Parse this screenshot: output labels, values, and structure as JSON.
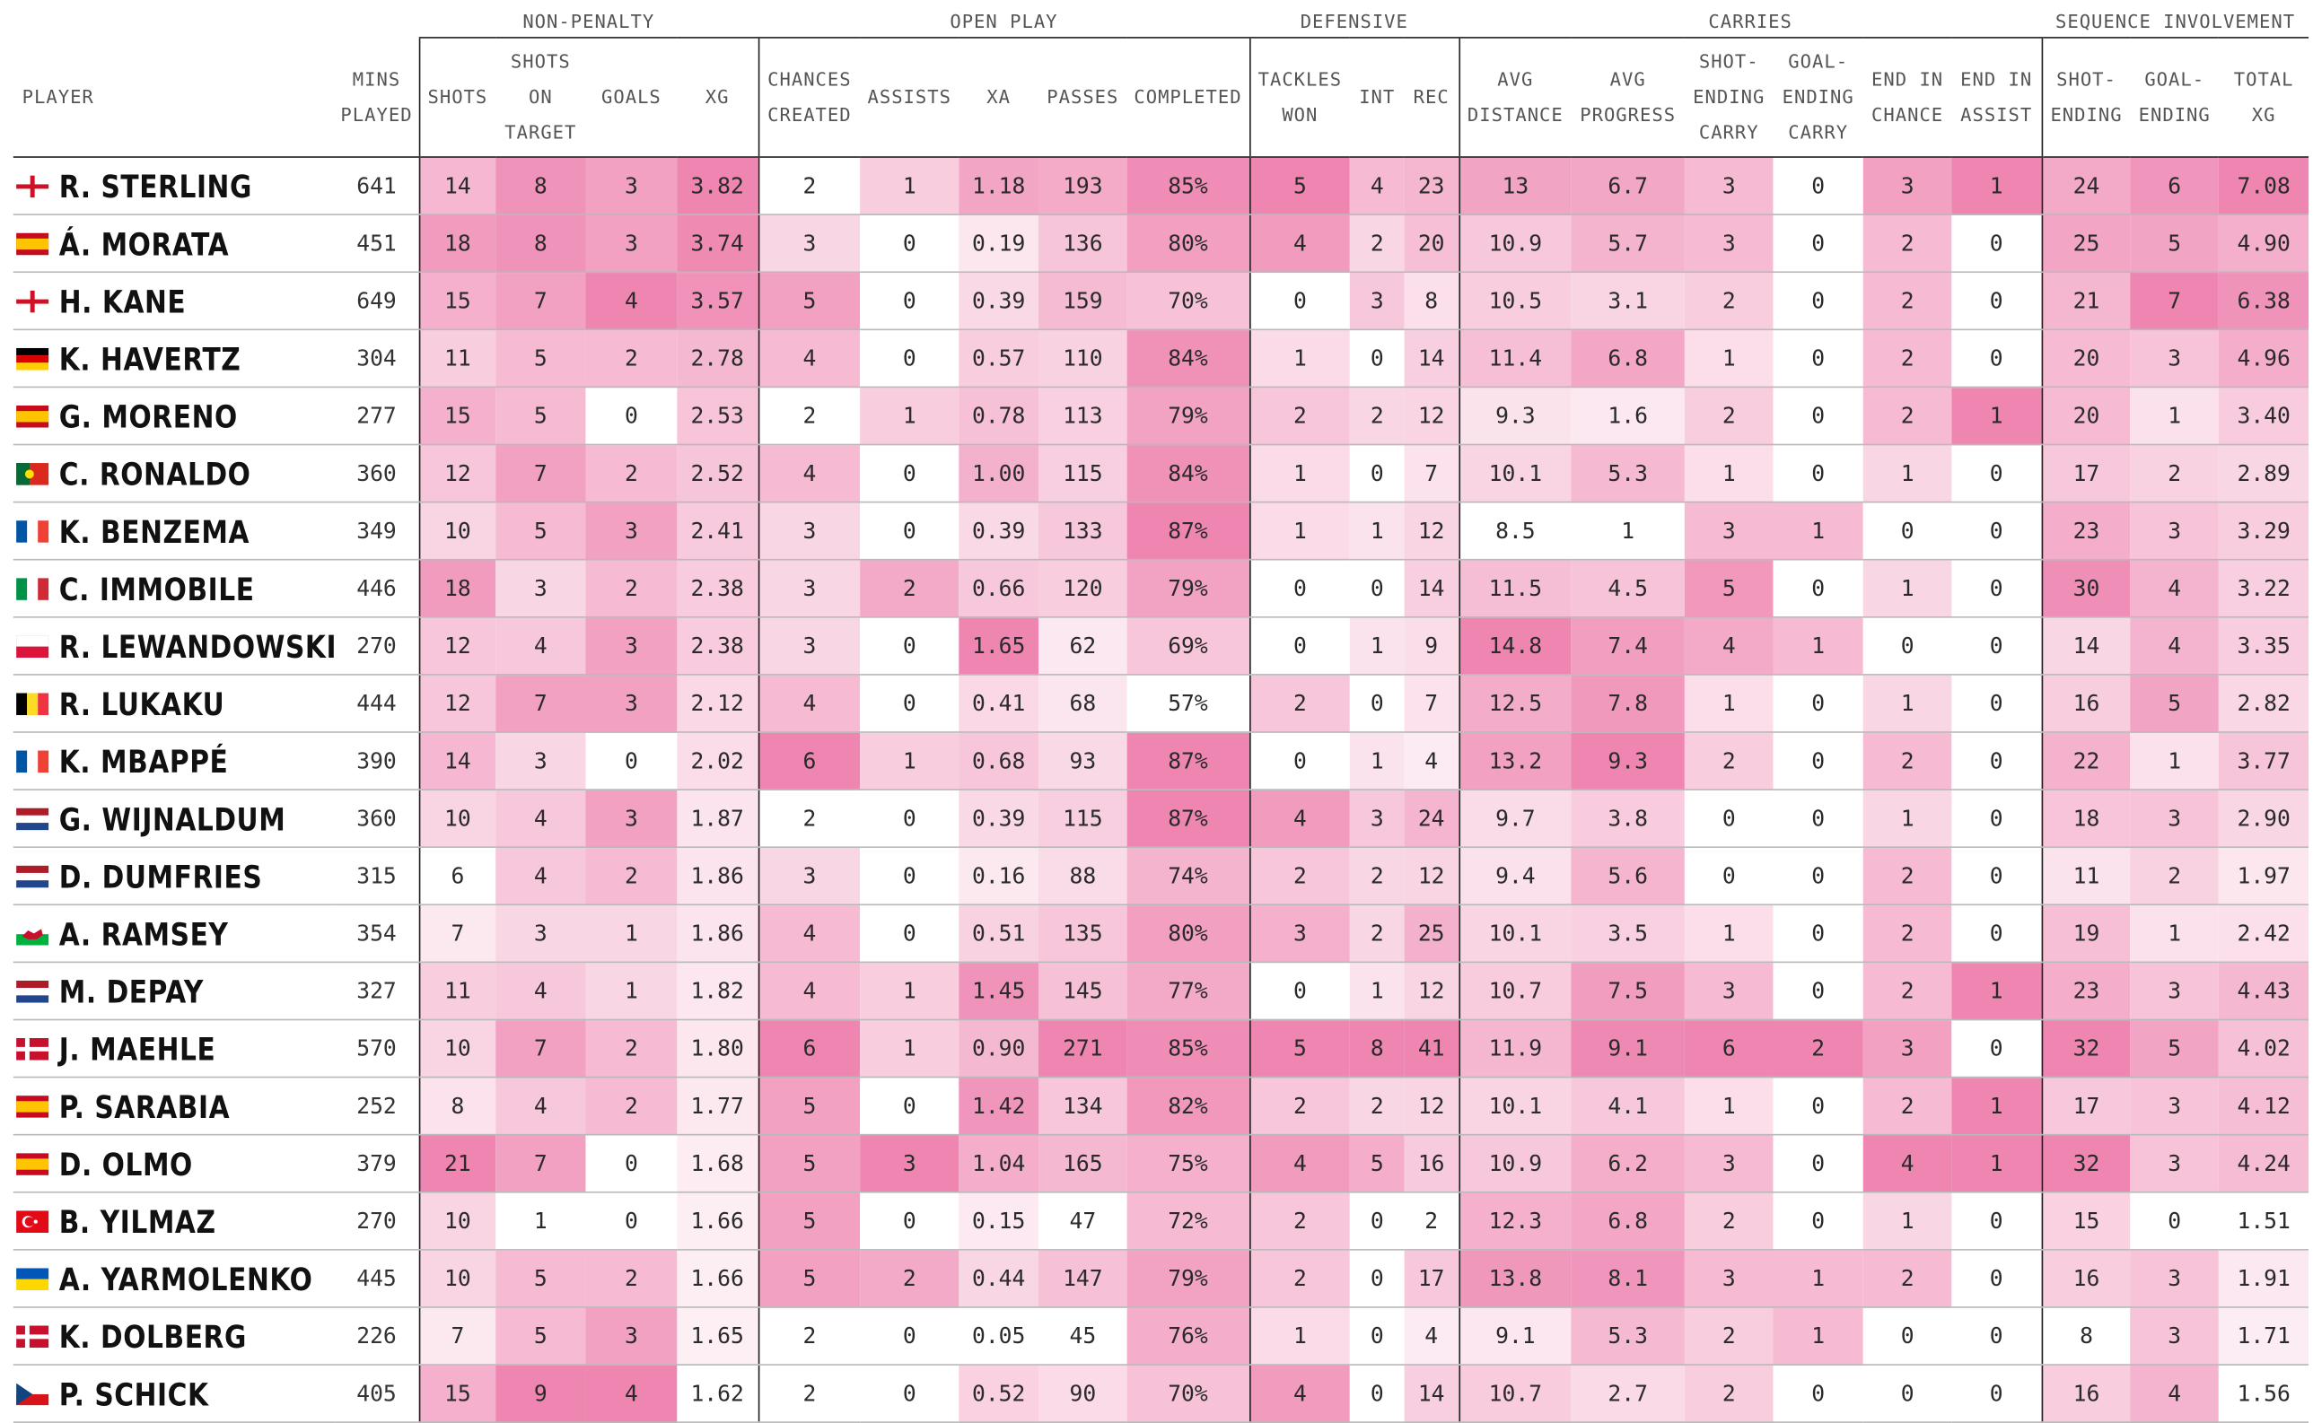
{
  "groups": [
    {
      "label": "",
      "span": 2
    },
    {
      "label": "NON-PENALTY",
      "span": 4
    },
    {
      "label": "OPEN PLAY",
      "span": 5
    },
    {
      "label": "DEFENSIVE",
      "span": 3
    },
    {
      "label": "CARRIES",
      "span": 6
    },
    {
      "label": "SEQUENCE INVOLVEMENT",
      "span": 3
    }
  ],
  "headers": [
    [
      "PLAYER"
    ],
    [
      "MINS",
      "PLAYED"
    ],
    [
      "SHOTS"
    ],
    [
      "SHOTS",
      "ON",
      "TARGET"
    ],
    [
      "GOALS"
    ],
    [
      "XG"
    ],
    [
      "CHANCES",
      "CREATED"
    ],
    [
      "ASSISTS"
    ],
    [
      "XA"
    ],
    [
      "PASSES"
    ],
    [
      "COMPLETED"
    ],
    [
      "TACKLES",
      "WON"
    ],
    [
      "INT"
    ],
    [
      "REC"
    ],
    [
      "AVG",
      "DISTANCE"
    ],
    [
      "AVG",
      "PROGRESS"
    ],
    [
      "SHOT-",
      "ENDING",
      "CARRY"
    ],
    [
      "GOAL-",
      "ENDING",
      "CARRY"
    ],
    [
      "END IN",
      "CHANCE"
    ],
    [
      "END IN",
      "ASSIST"
    ],
    [
      "SHOT-",
      "ENDING"
    ],
    [
      "GOAL-",
      "ENDING"
    ],
    [
      "TOTAL",
      "XG"
    ]
  ],
  "colors": {
    "heat_light": "#fdf0f5",
    "heat_dark": "#ee86b1",
    "rule": "#222222",
    "row_rule": "#b9b9b9"
  },
  "chart_data": {
    "type": "table",
    "columns": [
      "PLAYER",
      "MINS PLAYED",
      "SHOTS",
      "SHOTS ON TARGET",
      "GOALS",
      "XG",
      "CHANCES CREATED",
      "ASSISTS",
      "XA",
      "PASSES",
      "COMPLETED",
      "TACKLES WON",
      "INT",
      "REC",
      "AVG DISTANCE",
      "AVG PROGRESS",
      "SHOT-ENDING CARRY",
      "GOAL-ENDING CARRY",
      "END IN CHANCE",
      "END IN ASSIST",
      "SHOT-ENDING",
      "GOAL-ENDING",
      "TOTAL XG"
    ],
    "rows": [
      {
        "flag": "england",
        "player": "R. STERLING",
        "values": [
          "641",
          "14",
          "8",
          "3",
          "3.82",
          "2",
          "1",
          "1.18",
          "193",
          "85%",
          "5",
          "4",
          "23",
          "13",
          "6.7",
          "3",
          "0",
          "3",
          "1",
          "24",
          "6",
          "7.08"
        ]
      },
      {
        "flag": "spain",
        "player": "Á. MORATA",
        "values": [
          "451",
          "18",
          "8",
          "3",
          "3.74",
          "3",
          "0",
          "0.19",
          "136",
          "80%",
          "4",
          "2",
          "20",
          "10.9",
          "5.7",
          "3",
          "0",
          "2",
          "0",
          "25",
          "5",
          "4.90"
        ]
      },
      {
        "flag": "england",
        "player": "H. KANE",
        "values": [
          "649",
          "15",
          "7",
          "4",
          "3.57",
          "5",
          "0",
          "0.39",
          "159",
          "70%",
          "0",
          "3",
          "8",
          "10.5",
          "3.1",
          "2",
          "0",
          "2",
          "0",
          "21",
          "7",
          "6.38"
        ]
      },
      {
        "flag": "germany",
        "player": "K. HAVERTZ",
        "values": [
          "304",
          "11",
          "5",
          "2",
          "2.78",
          "4",
          "0",
          "0.57",
          "110",
          "84%",
          "1",
          "0",
          "14",
          "11.4",
          "6.8",
          "1",
          "0",
          "2",
          "0",
          "20",
          "3",
          "4.96"
        ]
      },
      {
        "flag": "spain",
        "player": "G. MORENO",
        "values": [
          "277",
          "15",
          "5",
          "0",
          "2.53",
          "2",
          "1",
          "0.78",
          "113",
          "79%",
          "2",
          "2",
          "12",
          "9.3",
          "1.6",
          "2",
          "0",
          "2",
          "1",
          "20",
          "1",
          "3.40"
        ]
      },
      {
        "flag": "portugal",
        "player": "C. RONALDO",
        "values": [
          "360",
          "12",
          "7",
          "2",
          "2.52",
          "4",
          "0",
          "1.00",
          "115",
          "84%",
          "1",
          "0",
          "7",
          "10.1",
          "5.3",
          "1",
          "0",
          "1",
          "0",
          "17",
          "2",
          "2.89"
        ]
      },
      {
        "flag": "france",
        "player": "K. BENZEMA",
        "values": [
          "349",
          "10",
          "5",
          "3",
          "2.41",
          "3",
          "0",
          "0.39",
          "133",
          "87%",
          "1",
          "1",
          "12",
          "8.5",
          "1",
          "3",
          "1",
          "0",
          "0",
          "23",
          "3",
          "3.29"
        ]
      },
      {
        "flag": "italy",
        "player": "C. IMMOBILE",
        "values": [
          "446",
          "18",
          "3",
          "2",
          "2.38",
          "3",
          "2",
          "0.66",
          "120",
          "79%",
          "0",
          "0",
          "14",
          "11.5",
          "4.5",
          "5",
          "0",
          "1",
          "0",
          "30",
          "4",
          "3.22"
        ]
      },
      {
        "flag": "poland",
        "player": "R. LEWANDOWSKI",
        "values": [
          "270",
          "12",
          "4",
          "3",
          "2.38",
          "3",
          "0",
          "1.65",
          "62",
          "69%",
          "0",
          "1",
          "9",
          "14.8",
          "7.4",
          "4",
          "1",
          "0",
          "0",
          "14",
          "4",
          "3.35"
        ]
      },
      {
        "flag": "belgium",
        "player": "R. LUKAKU",
        "values": [
          "444",
          "12",
          "7",
          "3",
          "2.12",
          "4",
          "0",
          "0.41",
          "68",
          "57%",
          "2",
          "0",
          "7",
          "12.5",
          "7.8",
          "1",
          "0",
          "1",
          "0",
          "16",
          "5",
          "2.82"
        ]
      },
      {
        "flag": "france",
        "player": "K. MBAPPÉ",
        "values": [
          "390",
          "14",
          "3",
          "0",
          "2.02",
          "6",
          "1",
          "0.68",
          "93",
          "87%",
          "0",
          "1",
          "4",
          "13.2",
          "9.3",
          "2",
          "0",
          "2",
          "0",
          "22",
          "1",
          "3.77"
        ]
      },
      {
        "flag": "netherlands",
        "player": "G. WIJNALDUM",
        "values": [
          "360",
          "10",
          "4",
          "3",
          "1.87",
          "2",
          "0",
          "0.39",
          "115",
          "87%",
          "4",
          "3",
          "24",
          "9.7",
          "3.8",
          "0",
          "0",
          "1",
          "0",
          "18",
          "3",
          "2.90"
        ]
      },
      {
        "flag": "netherlands",
        "player": "D. DUMFRIES",
        "values": [
          "315",
          "6",
          "4",
          "2",
          "1.86",
          "3",
          "0",
          "0.16",
          "88",
          "74%",
          "2",
          "2",
          "12",
          "9.4",
          "5.6",
          "0",
          "0",
          "2",
          "0",
          "11",
          "2",
          "1.97"
        ]
      },
      {
        "flag": "wales",
        "player": "A. RAMSEY",
        "values": [
          "354",
          "7",
          "3",
          "1",
          "1.86",
          "4",
          "0",
          "0.51",
          "135",
          "80%",
          "3",
          "2",
          "25",
          "10.1",
          "3.5",
          "1",
          "0",
          "2",
          "0",
          "19",
          "1",
          "2.42"
        ]
      },
      {
        "flag": "netherlands",
        "player": "M. DEPAY",
        "values": [
          "327",
          "11",
          "4",
          "1",
          "1.82",
          "4",
          "1",
          "1.45",
          "145",
          "77%",
          "0",
          "1",
          "12",
          "10.7",
          "7.5",
          "3",
          "0",
          "2",
          "1",
          "23",
          "3",
          "4.43"
        ]
      },
      {
        "flag": "denmark",
        "player": "J. MAEHLE",
        "values": [
          "570",
          "10",
          "7",
          "2",
          "1.80",
          "6",
          "1",
          "0.90",
          "271",
          "85%",
          "5",
          "8",
          "41",
          "11.9",
          "9.1",
          "6",
          "2",
          "3",
          "0",
          "32",
          "5",
          "4.02"
        ]
      },
      {
        "flag": "spain",
        "player": "P. SARABIA",
        "values": [
          "252",
          "8",
          "4",
          "2",
          "1.77",
          "5",
          "0",
          "1.42",
          "134",
          "82%",
          "2",
          "2",
          "12",
          "10.1",
          "4.1",
          "1",
          "0",
          "2",
          "1",
          "17",
          "3",
          "4.12"
        ]
      },
      {
        "flag": "spain",
        "player": "D. OLMO",
        "values": [
          "379",
          "21",
          "7",
          "0",
          "1.68",
          "5",
          "3",
          "1.04",
          "165",
          "75%",
          "4",
          "5",
          "16",
          "10.9",
          "6.2",
          "3",
          "0",
          "4",
          "1",
          "32",
          "3",
          "4.24"
        ]
      },
      {
        "flag": "turkey",
        "player": "B. YILMAZ",
        "values": [
          "270",
          "10",
          "1",
          "0",
          "1.66",
          "5",
          "0",
          "0.15",
          "47",
          "72%",
          "2",
          "0",
          "2",
          "12.3",
          "6.8",
          "2",
          "0",
          "1",
          "0",
          "15",
          "0",
          "1.51"
        ]
      },
      {
        "flag": "ukraine",
        "player": "A. YARMOLENKO",
        "values": [
          "445",
          "10",
          "5",
          "2",
          "1.66",
          "5",
          "2",
          "0.44",
          "147",
          "79%",
          "2",
          "0",
          "17",
          "13.8",
          "8.1",
          "3",
          "1",
          "2",
          "0",
          "16",
          "3",
          "1.91"
        ]
      },
      {
        "flag": "denmark",
        "player": "K. DOLBERG",
        "values": [
          "226",
          "7",
          "5",
          "3",
          "1.65",
          "2",
          "0",
          "0.05",
          "45",
          "76%",
          "1",
          "0",
          "4",
          "9.1",
          "5.3",
          "2",
          "1",
          "0",
          "0",
          "8",
          "3",
          "1.71"
        ]
      },
      {
        "flag": "czechia",
        "player": "P. SCHICK",
        "values": [
          "405",
          "15",
          "9",
          "4",
          "1.62",
          "2",
          "0",
          "0.52",
          "90",
          "70%",
          "4",
          "0",
          "14",
          "10.7",
          "2.7",
          "2",
          "0",
          "0",
          "0",
          "16",
          "4",
          "1.56"
        ]
      }
    ]
  }
}
